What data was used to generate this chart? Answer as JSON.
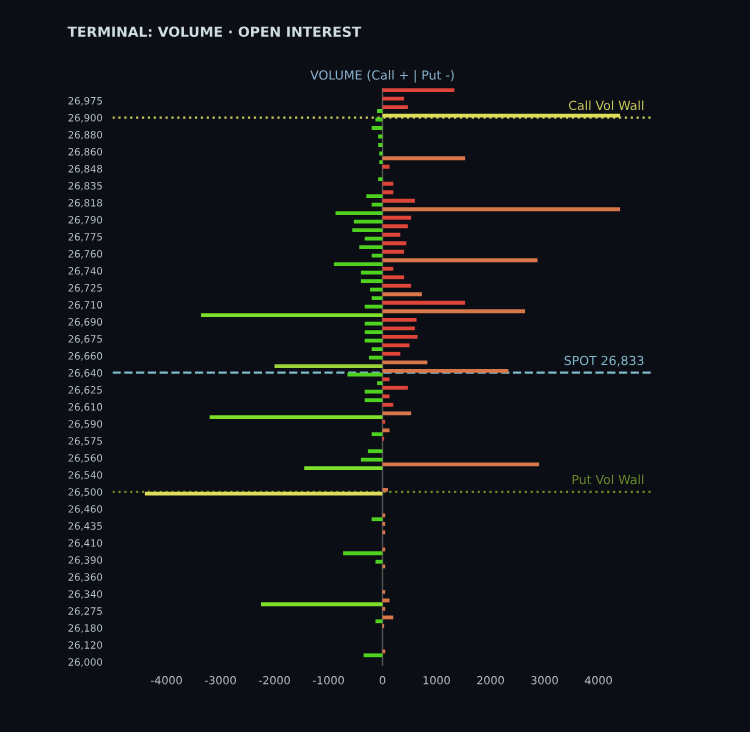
{
  "chart_data": {
    "type": "bar",
    "orientation": "horizontal",
    "title": "TERMINAL: VOLUME · OPEN INTEREST",
    "subtitle": "VOLUME (Call + | Put -)",
    "categories": [
      null,
      "26,975",
      null,
      "26,900",
      null,
      "26,880",
      null,
      "26,860",
      null,
      "26,848",
      null,
      "26,835",
      null,
      "26,818",
      null,
      "26,790",
      null,
      "26,775",
      null,
      "26,760",
      null,
      "26,740",
      null,
      "26,725",
      null,
      "26,710",
      null,
      "26,690",
      null,
      "26,675",
      null,
      "26,660",
      null,
      "26,640",
      null,
      "26,625",
      null,
      "26,610",
      null,
      "26,590",
      null,
      "26,575",
      null,
      "26,560",
      null,
      "26,540",
      null,
      "26,500",
      null,
      "26,460",
      null,
      "26,435",
      null,
      "26,410",
      null,
      "26,390",
      null,
      "26,360",
      null,
      "26,340",
      null,
      "26,275",
      null,
      "26,180",
      null,
      "26,120",
      null,
      "26,000"
    ],
    "series": [
      {
        "values": [
          1330,
          400,
          470,
          4400,
          null,
          null,
          null,
          null,
          1530,
          130,
          null,
          200,
          200,
          600,
          4400,
          530,
          470,
          330,
          440,
          400,
          2870,
          200,
          400,
          530,
          730,
          1530,
          2640,
          630,
          600,
          650,
          500,
          330,
          830,
          2330,
          130,
          470,
          130,
          200,
          530,
          50,
          130,
          30,
          null,
          null,
          2900,
          null,
          null,
          100,
          null,
          null,
          50,
          50,
          50,
          null,
          50,
          null,
          50,
          null,
          null,
          50,
          130,
          50,
          200,
          30,
          null,
          null,
          50,
          null
        ],
        "colors": [
          "#e0453a",
          "#e0453a",
          "#e0453a",
          "#dede5a",
          "#e0453a",
          "#e0453a",
          "#e0453a",
          "#e0453a",
          "#d9774a",
          "#e0453a",
          "#e0453a",
          "#e0453a",
          "#e0453a",
          "#e0453a",
          "#d9774a",
          "#e0453a",
          "#e0453a",
          "#e0453a",
          "#e0453a",
          "#e0453a",
          "#d9774a",
          "#e0453a",
          "#e0453a",
          "#e0453a",
          "#d9774a",
          "#e0453a",
          "#d9774a",
          "#e0453a",
          "#e0453a",
          "#e0453a",
          "#e0453a",
          "#e0453a",
          "#d9774a",
          "#d9774a",
          "#e0453a",
          "#e0453a",
          "#e0453a",
          "#e0453a",
          "#d9774a",
          "#e0453a",
          "#d9774a",
          "#e0453a",
          "#e0453a",
          "#e0453a",
          "#d9774a",
          "#e0453a",
          "#e0453a",
          "#d9774a",
          "#e0453a",
          "#e0453a",
          "#d9774a",
          "#d9774a",
          "#d9774a",
          "#e0453a",
          "#d9774a",
          "#e0453a",
          "#d9774a",
          "#e0453a",
          "#e0453a",
          "#d9774a",
          "#d9774a",
          "#d9774a",
          "#d9774a",
          "#d9774a",
          "#e0453a",
          "#e0453a",
          "#d9774a",
          "#e0453a"
        ]
      },
      {
        "values": [
          null,
          null,
          -100,
          -130,
          -200,
          -80,
          -80,
          -60,
          -60,
          null,
          -80,
          null,
          -300,
          -200,
          -870,
          -530,
          -560,
          -330,
          -430,
          -200,
          -900,
          -400,
          -400,
          -230,
          -200,
          -330,
          -3360,
          -330,
          -330,
          -330,
          -200,
          -250,
          -2000,
          -650,
          -100,
          -330,
          -330,
          null,
          -3200,
          null,
          -200,
          null,
          -270,
          -400,
          -1450,
          null,
          null,
          -4400,
          null,
          null,
          -200,
          null,
          null,
          null,
          -730,
          -130,
          null,
          null,
          null,
          null,
          -2250,
          null,
          -130,
          null,
          null,
          null,
          -350,
          null
        ],
        "colors": [
          "#4fd11f",
          "#4fd11f",
          "#4fd11f",
          "#4fd11f",
          "#4fd11f",
          "#4fd11f",
          "#4fd11f",
          "#4fd11f",
          "#4fd11f",
          "#4fd11f",
          "#4fd11f",
          "#4fd11f",
          "#4fd11f",
          "#4fd11f",
          "#4fd11f",
          "#4fd11f",
          "#4fd11f",
          "#4fd11f",
          "#4fd11f",
          "#4fd11f",
          "#4fd11f",
          "#4fd11f",
          "#4fd11f",
          "#4fd11f",
          "#4fd11f",
          "#4fd11f",
          "#7ee02a",
          "#4fd11f",
          "#4fd11f",
          "#4fd11f",
          "#4fd11f",
          "#4fd11f",
          "#9ad43a",
          "#4fd11f",
          "#4fd11f",
          "#4fd11f",
          "#4fd11f",
          "#4fd11f",
          "#7ee02a",
          "#4fd11f",
          "#4fd11f",
          "#4fd11f",
          "#4fd11f",
          "#4fd11f",
          "#7ee02a",
          "#4fd11f",
          "#4fd11f",
          "#dede5a",
          "#4fd11f",
          "#4fd11f",
          "#4fd11f",
          "#4fd11f",
          "#4fd11f",
          "#4fd11f",
          "#4fd11f",
          "#4fd11f",
          "#4fd11f",
          "#4fd11f",
          "#4fd11f",
          "#4fd11f",
          "#7ee02a",
          "#4fd11f",
          "#4fd11f",
          "#4fd11f",
          "#4fd11f",
          "#4fd11f",
          "#4fd11f",
          "#4fd11f"
        ]
      }
    ],
    "xlim": [
      -5000,
      5000
    ],
    "xticks": [
      -4000,
      -3000,
      -2000,
      -1000,
      0,
      1000,
      2000,
      3000,
      4000
    ],
    "ref_lines": [
      {
        "axis": "y",
        "value": "26,900",
        "label": "Call Vol Wall",
        "color": "#c8c85a",
        "line_style": "dotted"
      },
      {
        "axis": "y",
        "value": "26,640",
        "label": "SPOT 26,833",
        "color": "#7fb8c8",
        "line_style": "dashed"
      },
      {
        "axis": "y",
        "value": "26,500",
        "label": "Put Vol Wall",
        "color": "#6a8a2a",
        "line_style": "dotted"
      }
    ],
    "grid": false,
    "legend": false
  }
}
